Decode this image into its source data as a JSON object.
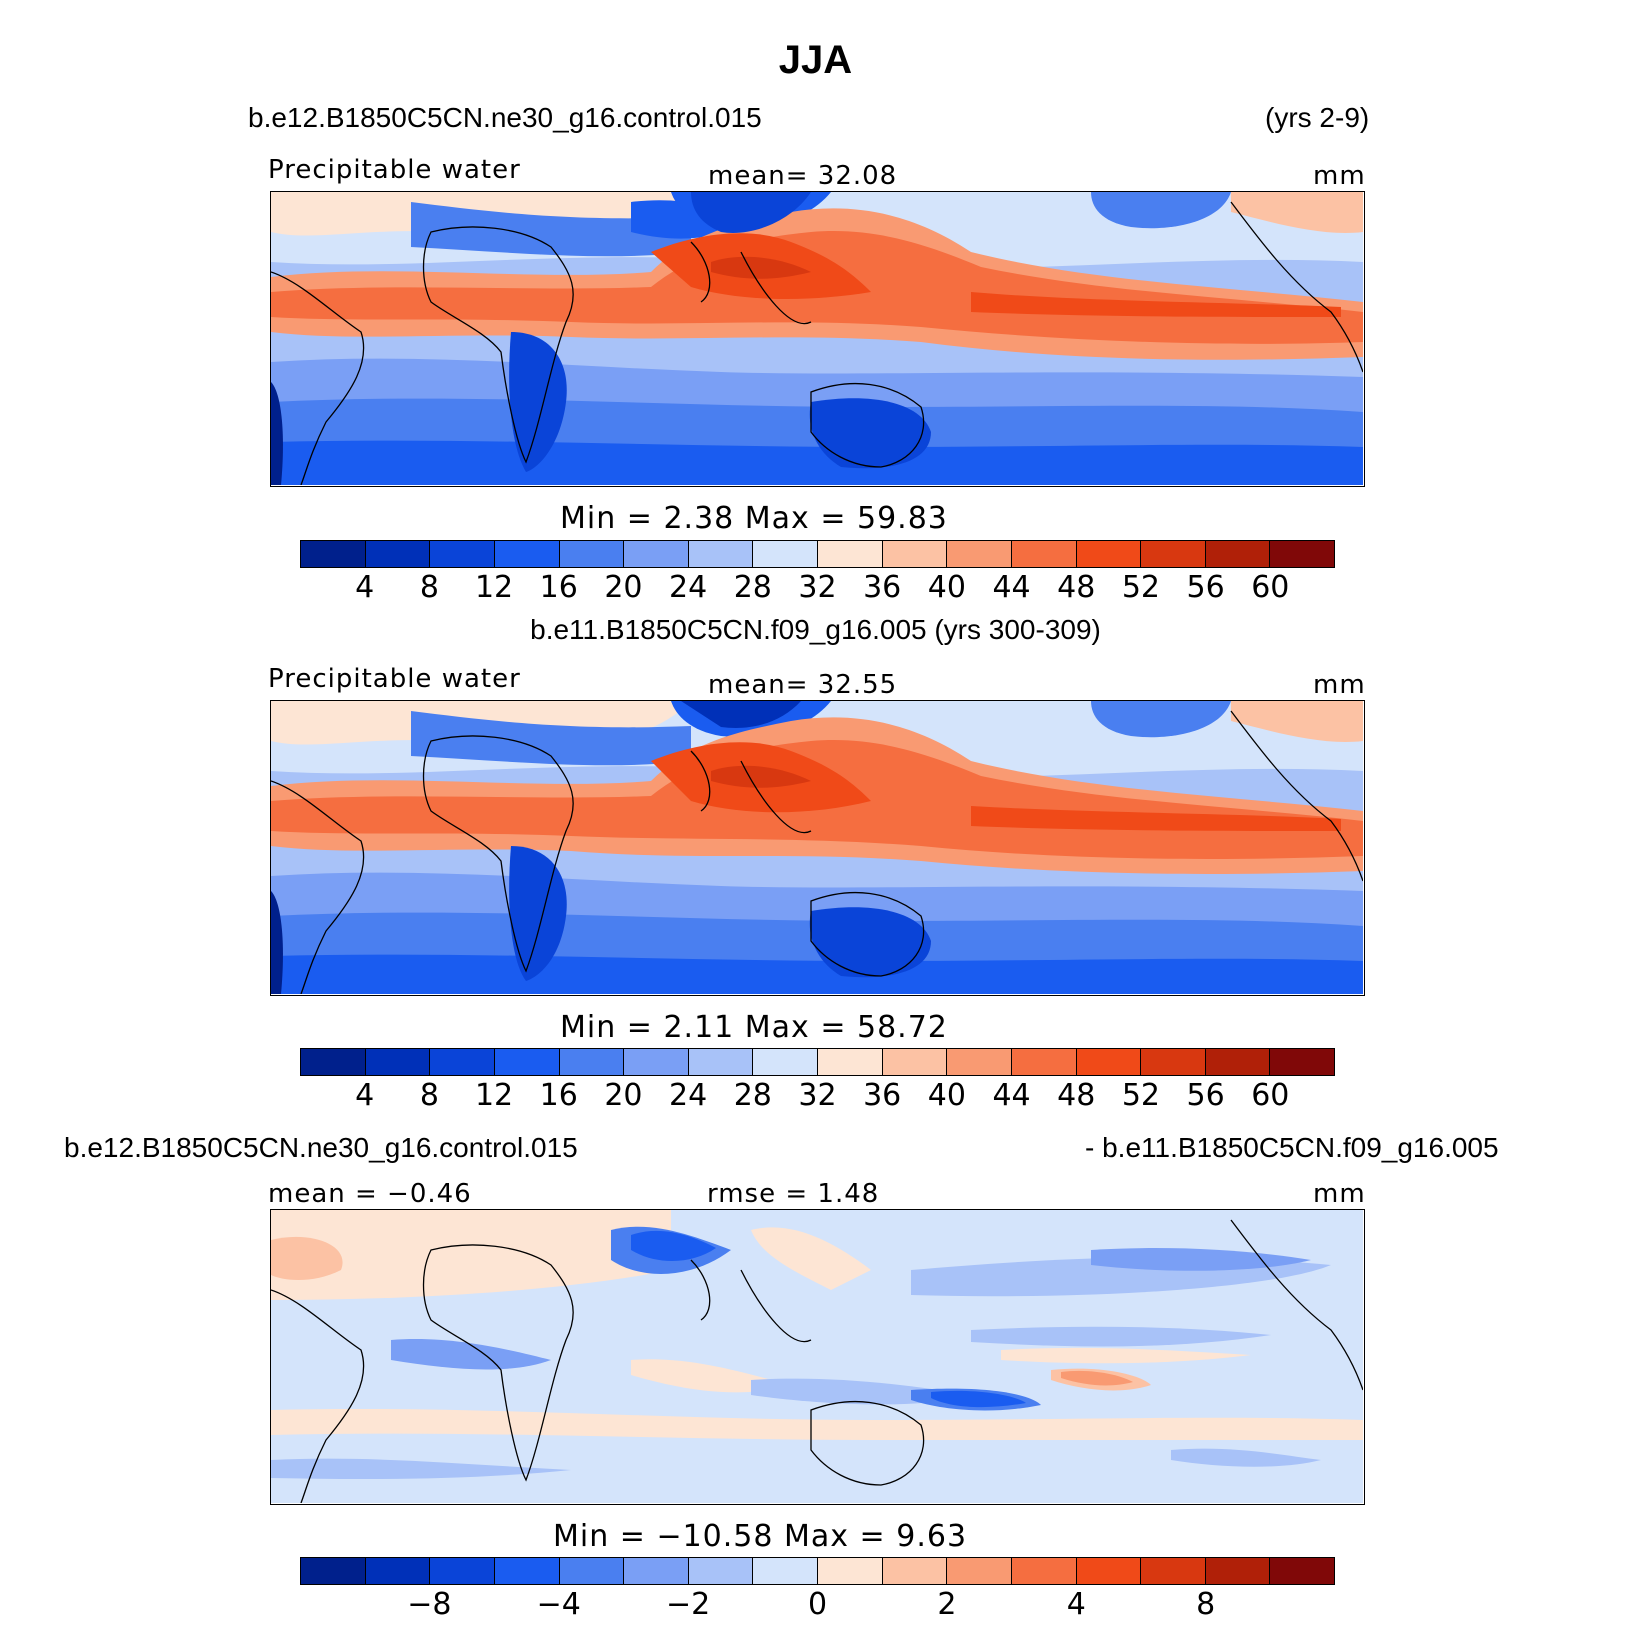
{
  "title": "JJA",
  "colors": [
    "#00208c",
    "#0030b8",
    "#0a44d8",
    "#1a5cf0",
    "#4a7ff0",
    "#7a9ff5",
    "#a8c2f8",
    "#d4e4fb",
    "#fde5d4",
    "#fcc2a4",
    "#f99a72",
    "#f56e40",
    "#f04a18",
    "#d83810",
    "#b02008",
    "#800808"
  ],
  "panel1": {
    "case_name": "b.e12.B1850C5CN.ne30_g16.control.015",
    "years": "(yrs 2-9)",
    "variable": "Precipitable water",
    "mean": "mean=   32.08",
    "units": "mm",
    "minmax": "Min  =     2.38  Max  =    59.83",
    "ticks": [
      "4",
      "8",
      "12",
      "16",
      "20",
      "24",
      "28",
      "32",
      "36",
      "40",
      "44",
      "48",
      "52",
      "56",
      "60"
    ]
  },
  "panel2": {
    "case_name": "b.e11.B1850C5CN.f09_g16.005 (yrs 300-309)",
    "variable": "Precipitable water",
    "mean": "mean=   32.55",
    "units": "mm",
    "minmax": "Min  =     2.11  Max  =    58.72",
    "ticks": [
      "4",
      "8",
      "12",
      "16",
      "20",
      "24",
      "28",
      "32",
      "36",
      "40",
      "44",
      "48",
      "52",
      "56",
      "60"
    ]
  },
  "panel3": {
    "case_left": "b.e12.B1850C5CN.ne30_g16.control.015",
    "case_right": "- b.e11.B1850C5CN.f09_g16.005",
    "mean": "mean  =   −0.46",
    "rmse": "rmse  =     1.48",
    "units": "mm",
    "minmax": "Min  =  −10.58  Max  =     9.63",
    "ticks": [
      "−8",
      "−4",
      "−2",
      "0",
      "2",
      "4",
      "8"
    ]
  }
}
